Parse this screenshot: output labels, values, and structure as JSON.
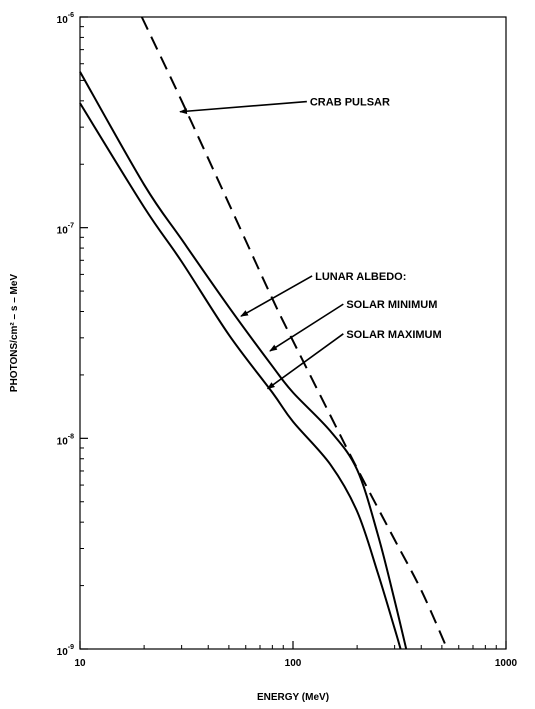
{
  "chart_data": {
    "type": "line",
    "xlabel": "ENERGY (MeV)",
    "ylabel": "PHOTONS/cm²  –  s  –  MeV",
    "xscale": "log",
    "yscale": "log",
    "xlim": [
      10,
      1000
    ],
    "ylim": [
      1e-09,
      1e-06
    ],
    "grid": false,
    "x_ticks": [
      {
        "value": 10,
        "label": "10"
      },
      {
        "value": 100,
        "label": "100"
      },
      {
        "value": 1000,
        "label": "1000"
      }
    ],
    "y_ticks": [
      {
        "value": 1e-09,
        "base": "10",
        "exp": "-9"
      },
      {
        "value": 1e-08,
        "base": "10",
        "exp": "-8"
      },
      {
        "value": 1e-07,
        "base": "10",
        "exp": "-7"
      },
      {
        "value": 1e-06,
        "base": "10",
        "exp": "-6"
      }
    ],
    "series": [
      {
        "style": "dashed",
        "color": "#000000",
        "x": [
          19.5,
          30,
          50,
          80,
          100,
          150,
          200,
          300,
          400,
          530
        ],
        "y": [
          1e-06,
          4e-07,
          1.3e-07,
          4.6e-08,
          2.9e-08,
          1.28e-08,
          7.2e-09,
          3.3e-09,
          1.9e-09,
          1e-09
        ]
      },
      {
        "style": "solid",
        "color": "#000000",
        "x": [
          10,
          20,
          30,
          50,
          80,
          100,
          150,
          200,
          250,
          300,
          340
        ],
        "y": [
          5.5e-07,
          1.6e-07,
          8.8e-08,
          4.2e-08,
          2.2e-08,
          1.65e-08,
          1.08e-08,
          7.1e-09,
          3.5e-09,
          1.7e-09,
          1e-09
        ]
      },
      {
        "style": "solid",
        "color": "#000000",
        "x": [
          10,
          20,
          30,
          50,
          80,
          100,
          150,
          200,
          250,
          300,
          320
        ],
        "y": [
          3.9e-07,
          1.25e-07,
          6.9e-08,
          3.1e-08,
          1.65e-08,
          1.2e-08,
          7.5e-09,
          4.5e-09,
          2.3e-09,
          1.25e-09,
          1e-09
        ]
      }
    ],
    "annotations": [
      {
        "text": "CRAB PULSAR",
        "text_x": 120,
        "text_y": 3.8e-07,
        "arrow_to_x": 29.5,
        "arrow_to_y": 3.55e-07
      },
      {
        "text": "LUNAR ALBEDO:",
        "text_x": 127,
        "text_y": 5.65e-08,
        "arrow_to_x": 57,
        "arrow_to_y": 3.8e-08
      },
      {
        "text": "SOLAR MINIMUM",
        "text_x": 178,
        "text_y": 4.15e-08,
        "arrow_to_x": 78,
        "arrow_to_y": 2.6e-08
      },
      {
        "text": "SOLAR MAXIMUM",
        "text_x": 178,
        "text_y": 3e-08,
        "arrow_to_x": 76,
        "arrow_to_y": 1.72e-08
      }
    ]
  }
}
